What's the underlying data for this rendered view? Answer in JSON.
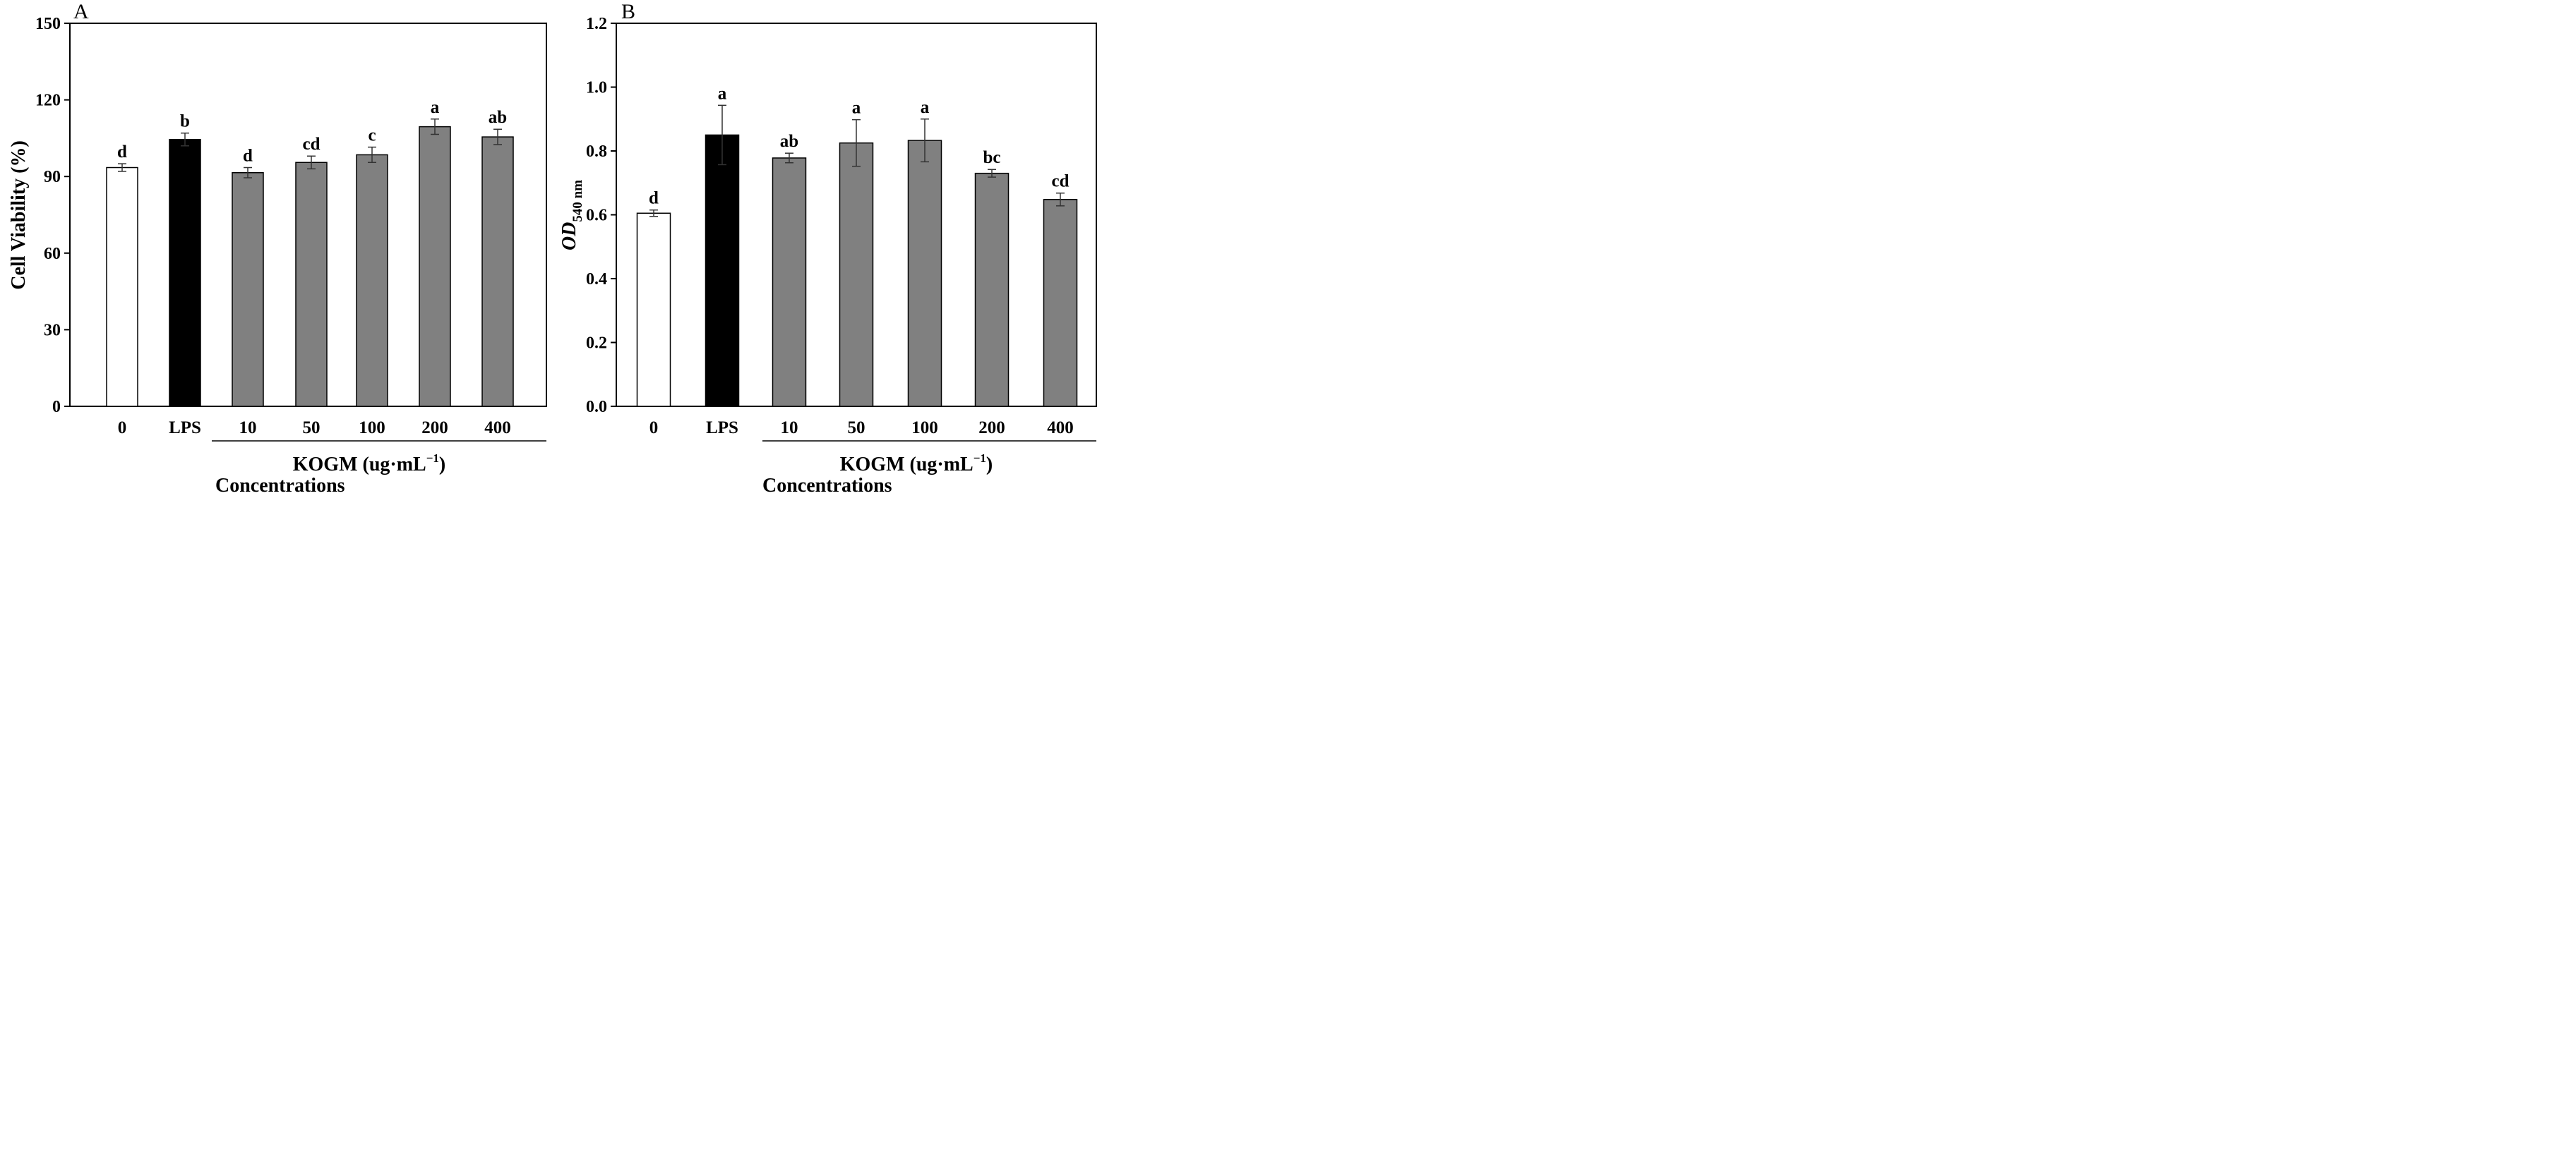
{
  "chart_data": [
    {
      "type": "bar",
      "panel": "A",
      "categories": [
        "0",
        "LPS",
        "10",
        "50",
        "100",
        "200",
        "400"
      ],
      "values": [
        93.5,
        104.5,
        91.5,
        95.5,
        98.5,
        109.5,
        105.5
      ],
      "errors": [
        1.5,
        2.5,
        2.0,
        2.5,
        3.0,
        3.0,
        3.0
      ],
      "significance": [
        "d",
        "b",
        "d",
        "cd",
        "c",
        "a",
        "ab"
      ],
      "fills": [
        "#ffffff",
        "#000000",
        "#808080",
        "#808080",
        "#808080",
        "#808080",
        "#808080"
      ],
      "ylabel": "Cell Viability (%)",
      "ylim": [
        0,
        150
      ],
      "yticks": [
        "0",
        "30",
        "60",
        "90",
        "120",
        "150"
      ],
      "group_label": "KOGM (ug·mL",
      "group_label_sup": "−1",
      "group_label_close": ")",
      "xlabel": "Concentrations"
    },
    {
      "type": "bar",
      "panel": "B",
      "categories": [
        "0",
        "LPS",
        "10",
        "50",
        "100",
        "200",
        "400"
      ],
      "values": [
        0.605,
        0.85,
        0.778,
        0.825,
        0.833,
        0.73,
        0.648
      ],
      "errors": [
        0.01,
        0.093,
        0.015,
        0.073,
        0.067,
        0.012,
        0.02
      ],
      "significance": [
        "d",
        "a",
        "ab",
        "a",
        "a",
        "bc",
        "cd"
      ],
      "fills": [
        "#ffffff",
        "#000000",
        "#808080",
        "#808080",
        "#808080",
        "#808080",
        "#808080"
      ],
      "ylabel": "OD",
      "ylabel_sub": "540 nm",
      "ylim": [
        0,
        1.2
      ],
      "yticks": [
        "0.0",
        "0.2",
        "0.4",
        "0.6",
        "0.8",
        "1.0",
        "1.2"
      ],
      "group_label": "KOGM (ug·mL",
      "group_label_sup": "−1",
      "group_label_close": ")",
      "xlabel": "Concentrations"
    }
  ]
}
